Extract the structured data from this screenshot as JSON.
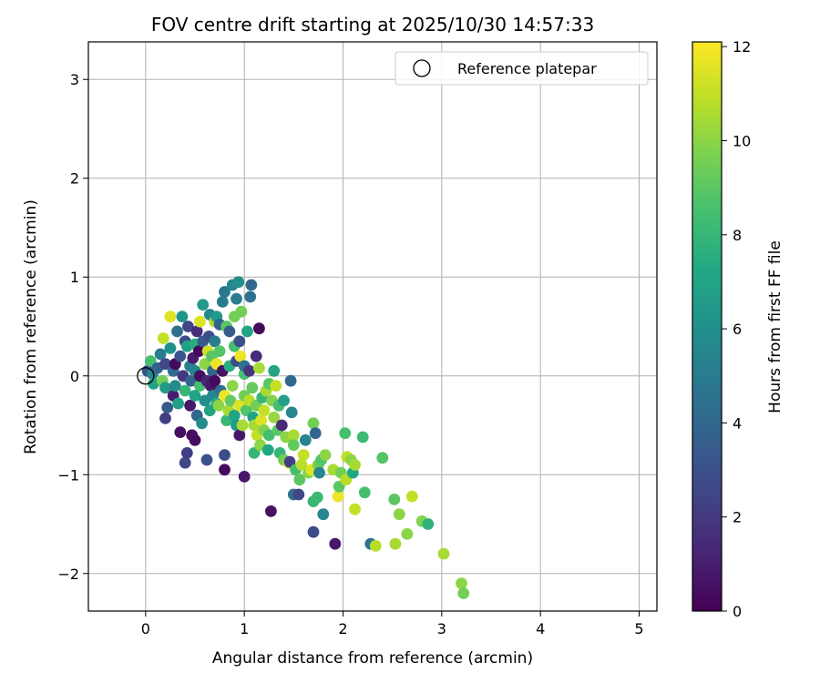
{
  "chart_data": {
    "type": "scatter",
    "title": "FOV centre drift starting at 2025/10/30 14:57:33",
    "xlabel": "Angular distance from reference (arcmin)",
    "ylabel": "Rotation from reference (arcmin)",
    "colorbar_label": "Hours from first FF file",
    "xlim": [
      -0.58,
      5.18
    ],
    "ylim": [
      -2.38,
      3.38
    ],
    "clim": [
      0,
      12.1
    ],
    "x_ticks": [
      0,
      1,
      2,
      3,
      4,
      5
    ],
    "y_ticks": [
      -2,
      -1,
      0,
      1,
      2,
      3
    ],
    "colorbar_ticks": [
      0,
      2,
      4,
      6,
      8,
      10,
      12
    ],
    "x_tick_labels": [
      "0",
      "1",
      "2",
      "3",
      "4",
      "5"
    ],
    "y_tick_labels": [
      "−2",
      "−1",
      "0",
      "1",
      "2",
      "3"
    ],
    "colorbar_tick_labels": [
      "0",
      "2",
      "4",
      "6",
      "8",
      "10",
      "12"
    ],
    "grid": true,
    "legend": {
      "position": "upper-right",
      "entries": [
        "Reference platepar"
      ]
    },
    "colormap": "viridis",
    "reference_point": {
      "x": 0,
      "y": 0
    },
    "points": [
      [
        0.02,
        0.05,
        3.0
      ],
      [
        0.05,
        0.15,
        8.5
      ],
      [
        0.07,
        0.02,
        5.5
      ],
      [
        0.08,
        -0.08,
        7.0
      ],
      [
        0.12,
        0.08,
        3.8
      ],
      [
        0.15,
        0.22,
        5.0
      ],
      [
        0.17,
        -0.05,
        9.5
      ],
      [
        0.18,
        0.38,
        11.0
      ],
      [
        0.2,
        -0.12,
        6.5
      ],
      [
        0.2,
        0.12,
        2.5
      ],
      [
        0.2,
        -0.43,
        2.2
      ],
      [
        0.22,
        -0.32,
        3.5
      ],
      [
        0.25,
        0.6,
        11.5
      ],
      [
        0.25,
        0.28,
        6.0
      ],
      [
        0.28,
        -0.2,
        1.0
      ],
      [
        0.28,
        0.05,
        4.2
      ],
      [
        0.3,
        0.12,
        0.3
      ],
      [
        0.3,
        -0.1,
        5.8
      ],
      [
        0.32,
        0.45,
        4.5
      ],
      [
        0.33,
        -0.28,
        6.8
      ],
      [
        0.35,
        0.2,
        3.2
      ],
      [
        0.35,
        -0.57,
        0.5
      ],
      [
        0.37,
        0.6,
        6.2
      ],
      [
        0.38,
        0.0,
        2.0
      ],
      [
        0.4,
        -0.15,
        8.0
      ],
      [
        0.4,
        0.35,
        2.8
      ],
      [
        0.4,
        -0.88,
        2.5
      ],
      [
        0.42,
        0.3,
        6.8
      ],
      [
        0.42,
        -0.78,
        2.2
      ],
      [
        0.43,
        0.5,
        2.5
      ],
      [
        0.45,
        -0.3,
        0.8
      ],
      [
        0.45,
        0.1,
        5.2
      ],
      [
        0.46,
        -0.05,
        3.8
      ],
      [
        0.47,
        -0.6,
        0.5
      ],
      [
        0.48,
        0.18,
        1.0
      ],
      [
        0.5,
        0.32,
        7.5
      ],
      [
        0.5,
        -0.2,
        7.0
      ],
      [
        0.5,
        0.05,
        5.5
      ],
      [
        0.5,
        -0.65,
        0.4
      ],
      [
        0.52,
        0.45,
        1.5
      ],
      [
        0.52,
        -0.4,
        4.0
      ],
      [
        0.54,
        0.25,
        0.2
      ],
      [
        0.55,
        -0.1,
        8.5
      ],
      [
        0.55,
        0.55,
        11.5
      ],
      [
        0.55,
        0.0,
        0.4
      ],
      [
        0.57,
        -0.48,
        5.8
      ],
      [
        0.58,
        0.35,
        3.5
      ],
      [
        0.58,
        0.72,
        6.5
      ],
      [
        0.6,
        -0.25,
        6.0
      ],
      [
        0.6,
        0.12,
        10.0
      ],
      [
        0.62,
        -0.05,
        1.2
      ],
      [
        0.62,
        -0.85,
        3.0
      ],
      [
        0.63,
        0.25,
        11.2
      ],
      [
        0.64,
        0.4,
        2.8
      ],
      [
        0.65,
        -0.35,
        7.0
      ],
      [
        0.65,
        0.62,
        5.5
      ],
      [
        0.66,
        -0.1,
        0.8
      ],
      [
        0.67,
        0.2,
        9.0
      ],
      [
        0.68,
        0.05,
        4.0
      ],
      [
        0.68,
        -0.2,
        5.5
      ],
      [
        0.7,
        0.55,
        10.5
      ],
      [
        0.7,
        -0.05,
        0.3
      ],
      [
        0.7,
        0.35,
        5.0
      ],
      [
        0.72,
        -0.28,
        7.5
      ],
      [
        0.72,
        0.6,
        6.5
      ],
      [
        0.72,
        0.12,
        11.8
      ],
      [
        0.74,
        -0.3,
        10.0
      ],
      [
        0.75,
        0.25,
        8.8
      ],
      [
        0.75,
        0.52,
        3.8
      ],
      [
        0.76,
        -0.15,
        4.5
      ],
      [
        0.78,
        0.05,
        0.6
      ],
      [
        0.78,
        0.75,
        5.0
      ],
      [
        0.8,
        0.85,
        4.8
      ],
      [
        0.8,
        -0.95,
        0.3
      ],
      [
        0.8,
        -0.8,
        2.8
      ],
      [
        0.8,
        -0.2,
        11.8
      ],
      [
        0.82,
        0.5,
        9.0
      ],
      [
        0.82,
        -0.45,
        8.0
      ],
      [
        0.84,
        -0.35,
        10.5
      ],
      [
        0.85,
        0.45,
        3.5
      ],
      [
        0.85,
        0.1,
        7.5
      ],
      [
        0.86,
        -0.25,
        9.2
      ],
      [
        0.88,
        0.92,
        5.5
      ],
      [
        0.88,
        -0.1,
        10.0
      ],
      [
        0.9,
        0.6,
        9.5
      ],
      [
        0.9,
        0.3,
        8.5
      ],
      [
        0.9,
        -0.4,
        7.0
      ],
      [
        0.92,
        -0.5,
        6.5
      ],
      [
        0.92,
        0.78,
        5.0
      ],
      [
        0.92,
        0.15,
        2.8
      ],
      [
        0.94,
        0.95,
        6.0
      ],
      [
        0.95,
        -0.6,
        0.8
      ],
      [
        0.95,
        0.35,
        3.0
      ],
      [
        0.95,
        -0.3,
        11.5
      ],
      [
        0.96,
        0.2,
        11.8
      ],
      [
        0.97,
        0.65,
        9.5
      ],
      [
        0.98,
        -0.5,
        10.5
      ],
      [
        1.0,
        0.02,
        8.5
      ],
      [
        1.0,
        -0.2,
        9.5
      ],
      [
        1.0,
        0.1,
        4.5
      ],
      [
        1.0,
        -1.02,
        0.8
      ],
      [
        1.02,
        -0.35,
        8.8
      ],
      [
        1.03,
        0.45,
        7.0
      ],
      [
        1.05,
        -0.25,
        10.8
      ],
      [
        1.05,
        0.05,
        1.8
      ],
      [
        1.06,
        0.8,
        4.5
      ],
      [
        1.07,
        0.92,
        4.0
      ],
      [
        1.08,
        -0.12,
        9.2
      ],
      [
        1.09,
        -0.42,
        7.0
      ],
      [
        1.1,
        -0.78,
        8.0
      ],
      [
        1.1,
        -0.5,
        10.5
      ],
      [
        1.12,
        -0.3,
        9.5
      ],
      [
        1.12,
        0.2,
        1.5
      ],
      [
        1.13,
        -0.6,
        11.0
      ],
      [
        1.15,
        0.08,
        10.5
      ],
      [
        1.15,
        0.48,
        0.3
      ],
      [
        1.16,
        -0.7,
        10.0
      ],
      [
        1.17,
        -0.45,
        11.5
      ],
      [
        1.18,
        -0.22,
        8.0
      ],
      [
        1.2,
        -0.55,
        9.8
      ],
      [
        1.2,
        -0.35,
        11.0
      ],
      [
        1.22,
        -0.15,
        10.5
      ],
      [
        1.24,
        -0.75,
        7.2
      ],
      [
        1.25,
        -0.6,
        8.5
      ],
      [
        1.25,
        -0.08,
        9.0
      ],
      [
        1.27,
        -1.37,
        0.6
      ],
      [
        1.28,
        -0.25,
        9.8
      ],
      [
        1.3,
        0.05,
        7.0
      ],
      [
        1.3,
        -0.42,
        10.2
      ],
      [
        1.32,
        -0.1,
        11.0
      ],
      [
        1.34,
        -0.55,
        9.0
      ],
      [
        1.35,
        -0.3,
        8.5
      ],
      [
        1.36,
        -0.78,
        8.0
      ],
      [
        1.38,
        -0.5,
        1.5
      ],
      [
        1.4,
        -0.85,
        9.5
      ],
      [
        1.4,
        -0.25,
        6.8
      ],
      [
        1.42,
        -0.62,
        10.0
      ],
      [
        1.45,
        -0.88,
        11.2
      ],
      [
        1.46,
        -0.87,
        2.2
      ],
      [
        1.47,
        -0.05,
        4.0
      ],
      [
        1.48,
        -0.37,
        5.5
      ],
      [
        1.5,
        -0.6,
        10.5
      ],
      [
        1.5,
        -0.7,
        9.2
      ],
      [
        1.5,
        -1.2,
        4.5
      ],
      [
        1.52,
        -0.95,
        8.5
      ],
      [
        1.55,
        -1.2,
        2.5
      ],
      [
        1.56,
        -1.05,
        9.0
      ],
      [
        1.58,
        -0.9,
        10.8
      ],
      [
        1.6,
        -0.8,
        11.0
      ],
      [
        1.62,
        -0.65,
        5.5
      ],
      [
        1.65,
        -0.98,
        10.0
      ],
      [
        1.68,
        -0.95,
        11.5
      ],
      [
        1.7,
        -0.48,
        9.5
      ],
      [
        1.7,
        -1.27,
        8.0
      ],
      [
        1.7,
        -1.58,
        2.8
      ],
      [
        1.72,
        -0.58,
        4.0
      ],
      [
        1.74,
        -1.23,
        8.2
      ],
      [
        1.75,
        -0.9,
        9.5
      ],
      [
        1.76,
        -0.98,
        5.5
      ],
      [
        1.78,
        -0.85,
        8.8
      ],
      [
        1.8,
        -1.4,
        5.5
      ],
      [
        1.82,
        -0.8,
        10.0
      ],
      [
        1.9,
        -0.95,
        10.5
      ],
      [
        1.92,
        -1.7,
        0.8
      ],
      [
        1.95,
        -1.22,
        11.8
      ],
      [
        1.96,
        -1.12,
        9.0
      ],
      [
        1.98,
        -0.98,
        9.5
      ],
      [
        2.02,
        -0.58,
        8.5
      ],
      [
        2.03,
        -1.05,
        10.8
      ],
      [
        2.04,
        -0.82,
        11.0
      ],
      [
        2.08,
        -0.85,
        10.0
      ],
      [
        2.1,
        -0.98,
        7.2
      ],
      [
        2.12,
        -0.9,
        10.5
      ],
      [
        2.12,
        -1.35,
        11.0
      ],
      [
        2.2,
        -0.62,
        8.2
      ],
      [
        2.22,
        -1.18,
        8.5
      ],
      [
        2.28,
        -1.7,
        4.8
      ],
      [
        2.33,
        -1.72,
        10.8
      ],
      [
        2.4,
        -0.83,
        8.8
      ],
      [
        2.52,
        -1.25,
        9.0
      ],
      [
        2.53,
        -1.7,
        10.5
      ],
      [
        2.57,
        -1.4,
        10.0
      ],
      [
        2.65,
        -1.6,
        10.0
      ],
      [
        2.7,
        -1.22,
        11.0
      ],
      [
        2.8,
        -1.47,
        9.8
      ],
      [
        2.86,
        -1.5,
        7.8
      ],
      [
        3.02,
        -1.8,
        10.5
      ],
      [
        3.2,
        -2.1,
        10.0
      ],
      [
        3.22,
        -2.2,
        9.5
      ]
    ]
  }
}
